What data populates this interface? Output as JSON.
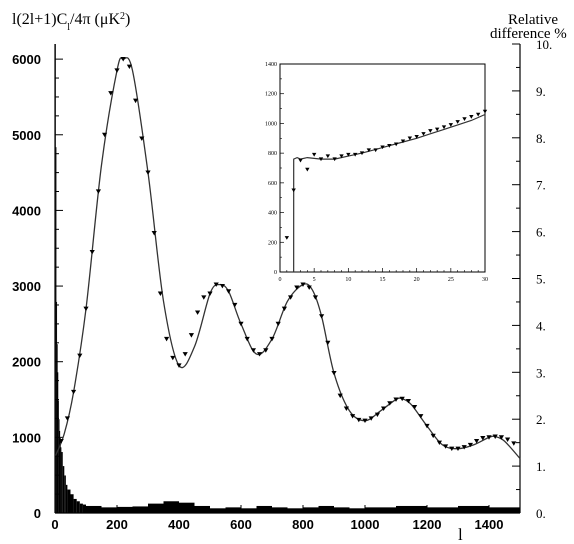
{
  "chart_data": [
    {
      "type": "line",
      "ylabel_html": "l(2l+1)C<tspan baseline-shift='sub' font-size='10'>l</tspan>/4&#960; (&#956;K<tspan baseline-shift='super' font-size='10'>2</tspan>)",
      "ylabel_text": "l(2l+1)Cl/4π (μK2)",
      "xlabel": "l",
      "y2label_line1": "Relative",
      "y2label_line2": "difference %",
      "xlim": [
        0,
        1500
      ],
      "ylim": [
        0,
        6200
      ],
      "y2lim": [
        0,
        10
      ],
      "x_ticks": [
        "0",
        "200",
        "400",
        "600",
        "800",
        "1000",
        "1200",
        "1400"
      ],
      "y_ticks": [
        "0",
        "1000",
        "2000",
        "3000",
        "4000",
        "5000",
        "6000"
      ],
      "y2_ticks": [
        "0.",
        "1.",
        "2.",
        "3.",
        "4.",
        "5.",
        "6.",
        "7.",
        "8.",
        "9.",
        "10."
      ],
      "series": [
        {
          "kind": "curve",
          "x": [
            2,
            30,
            60,
            100,
            150,
            200,
            220,
            250,
            300,
            350,
            400,
            450,
            500,
            530,
            560,
            600,
            650,
            700,
            750,
            800,
            830,
            860,
            900,
            950,
            1000,
            1050,
            1100,
            1120,
            1150,
            1200,
            1250,
            1300,
            1350,
            1400,
            1420,
            1450,
            1500
          ],
          "y": [
            760,
            1050,
            1600,
            2700,
            4600,
            5850,
            6000,
            5850,
            4500,
            2800,
            1950,
            2200,
            2900,
            3020,
            2930,
            2500,
            2100,
            2300,
            2800,
            3020,
            2950,
            2600,
            1850,
            1350,
            1220,
            1350,
            1500,
            1510,
            1430,
            1150,
            900,
            850,
            900,
            1000,
            1010,
            950,
            720
          ]
        },
        {
          "kind": "markers",
          "x": [
            20,
            40,
            60,
            80,
            100,
            120,
            140,
            160,
            180,
            200,
            220,
            240,
            260,
            280,
            300,
            320,
            340,
            360,
            380,
            400,
            420,
            440,
            460,
            480,
            500,
            520,
            540,
            560,
            580,
            600,
            620,
            640,
            660,
            680,
            700,
            720,
            740,
            760,
            780,
            800,
            820,
            840,
            860,
            880,
            900,
            920,
            940,
            960,
            980,
            1000,
            1020,
            1040,
            1060,
            1080,
            1100,
            1120,
            1140,
            1160,
            1180,
            1200,
            1220,
            1240,
            1260,
            1280,
            1300,
            1320,
            1340,
            1360,
            1380,
            1400,
            1420,
            1440,
            1460,
            1480
          ],
          "y": [
            950,
            1250,
            1600,
            2080,
            2700,
            3450,
            4250,
            5000,
            5550,
            5850,
            6000,
            5900,
            5450,
            4950,
            4500,
            3700,
            2900,
            2300,
            2050,
            1950,
            2100,
            2350,
            2650,
            2850,
            2900,
            3020,
            3000,
            2930,
            2750,
            2500,
            2300,
            2150,
            2100,
            2150,
            2300,
            2500,
            2700,
            2850,
            2980,
            3020,
            2980,
            2850,
            2600,
            2250,
            1850,
            1550,
            1380,
            1280,
            1230,
            1220,
            1250,
            1300,
            1380,
            1450,
            1500,
            1510,
            1480,
            1400,
            1280,
            1150,
            1020,
            930,
            880,
            850,
            850,
            870,
            900,
            950,
            990,
            1000,
            1010,
            1000,
            970,
            920
          ]
        }
      ],
      "residual_histogram": {
        "x": [
          0,
          2,
          4,
          6,
          8,
          10,
          12,
          14,
          16,
          18,
          20,
          25,
          30,
          35,
          40,
          50,
          60,
          70,
          80,
          90,
          100,
          150,
          200,
          250,
          300,
          350,
          400,
          450,
          500,
          550,
          600,
          650,
          700,
          750,
          800,
          850,
          900,
          950,
          1000,
          1100,
          1200,
          1300,
          1400,
          1500
        ],
        "y2": [
          10,
          7.8,
          4.5,
          3.6,
          3.0,
          2.4,
          2.0,
          1.75,
          1.6,
          1.4,
          1.3,
          1.0,
          0.8,
          0.6,
          0.5,
          0.4,
          0.3,
          0.25,
          0.2,
          0.18,
          0.15,
          0.12,
          0.13,
          0.14,
          0.2,
          0.25,
          0.22,
          0.15,
          0.1,
          0.12,
          0.1,
          0.15,
          0.12,
          0.1,
          0.12,
          0.15,
          0.12,
          0.1,
          0.12,
          0.15,
          0.12,
          0.15,
          0.12,
          0.12
        ]
      }
    },
    {
      "type": "line",
      "xlim": [
        0,
        30
      ],
      "ylim": [
        0,
        1400
      ],
      "x_ticks": [
        "0",
        "5",
        "10",
        "15",
        "20",
        "25",
        "30"
      ],
      "y_ticks": [
        "0",
        "200",
        "400",
        "600",
        "800",
        "1000",
        "1200",
        "1400"
      ],
      "series": [
        {
          "kind": "curve",
          "x": [
            2,
            2.5,
            3,
            4,
            6,
            8,
            10,
            12,
            14,
            16,
            18,
            20,
            22,
            24,
            26,
            28,
            30
          ],
          "y": [
            760,
            770,
            760,
            770,
            760,
            760,
            780,
            800,
            825,
            850,
            875,
            900,
            930,
            960,
            990,
            1020,
            1060
          ]
        },
        {
          "kind": "markers",
          "x": [
            1,
            2,
            3,
            4,
            5,
            6,
            7,
            8,
            9,
            10,
            11,
            12,
            13,
            14,
            15,
            16,
            17,
            18,
            19,
            20,
            21,
            22,
            23,
            24,
            25,
            26,
            27,
            28,
            29,
            30
          ],
          "y": [
            230,
            550,
            750,
            690,
            790,
            760,
            780,
            760,
            780,
            790,
            790,
            800,
            820,
            820,
            840,
            850,
            860,
            880,
            900,
            910,
            930,
            950,
            960,
            975,
            990,
            1010,
            1030,
            1045,
            1060,
            1080
          ]
        }
      ]
    }
  ]
}
